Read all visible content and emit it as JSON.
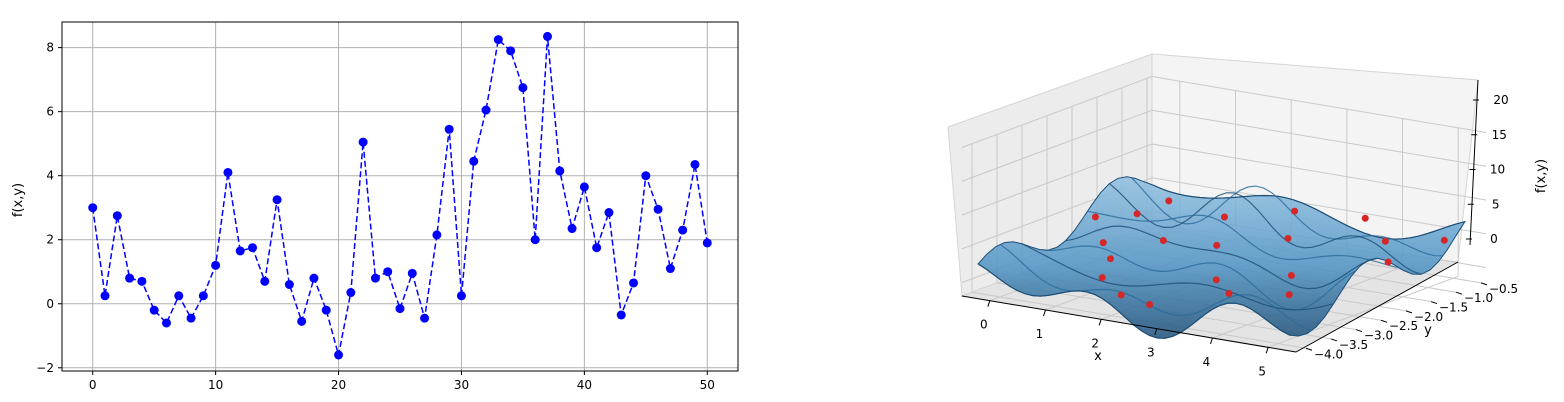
{
  "chart_data": [
    {
      "type": "line",
      "title": "",
      "xlabel": "",
      "ylabel": "f(x,y)",
      "xlim": [
        -2.5,
        52.5
      ],
      "ylim": [
        -2.1,
        8.8
      ],
      "xticks": [
        "0",
        "10",
        "20",
        "30",
        "40",
        "50"
      ],
      "yticks": [
        "−2",
        "0",
        "2",
        "4",
        "6",
        "8"
      ],
      "grid": true,
      "line_style": "dashed",
      "marker": "circle",
      "color": "#0000ff",
      "x": [
        0,
        1,
        2,
        3,
        4,
        5,
        6,
        7,
        8,
        9,
        10,
        11,
        12,
        13,
        14,
        15,
        16,
        17,
        18,
        19,
        20,
        21,
        22,
        23,
        24,
        25,
        26,
        27,
        28,
        29,
        30,
        31,
        32,
        33,
        34,
        35,
        36,
        37,
        38,
        39,
        40,
        41,
        42,
        43,
        44,
        45,
        46,
        47,
        48,
        49,
        50
      ],
      "y": [
        3.0,
        0.25,
        2.75,
        0.8,
        0.7,
        -0.2,
        -0.6,
        0.25,
        -0.45,
        0.25,
        1.2,
        4.1,
        1.65,
        1.75,
        0.7,
        3.25,
        0.6,
        -0.55,
        0.8,
        -0.2,
        -1.6,
        0.35,
        5.05,
        0.8,
        1.0,
        -0.15,
        0.95,
        -0.45,
        2.15,
        5.45,
        0.25,
        4.45,
        6.05,
        8.25,
        7.9,
        6.75,
        2.0,
        8.35,
        4.15,
        2.35,
        3.65,
        1.75,
        2.85,
        -0.35,
        0.65,
        4.0,
        2.95,
        1.1,
        2.3,
        4.35,
        1.9
      ]
    },
    {
      "type": "surface3d",
      "title": "",
      "xlabel": "x",
      "ylabel": "y",
      "zlabel": "f(x,y)",
      "xticks": [
        "0",
        "1",
        "2",
        "3",
        "4",
        "5"
      ],
      "yticks": [
        "−4.0",
        "−3.5",
        "−3.0",
        "−2.5",
        "−2.0",
        "−1.5",
        "−1.0",
        "−0.5"
      ],
      "zticks": [
        "0",
        "5",
        "10",
        "15",
        "20"
      ],
      "xlim": [
        -0.5,
        5.5
      ],
      "ylim": [
        -4.2,
        -0.4
      ],
      "zlim": [
        -2,
        20
      ],
      "surface_color": "#5b9fd0",
      "marker_color": "#d62728",
      "scatter": [
        {
          "x": 0.1,
          "y": -2.2,
          "z": 5.0
        },
        {
          "x": 0.4,
          "y": -1.7,
          "z": 4.5
        },
        {
          "x": 0.7,
          "y": -1.4,
          "z": 6.0
        },
        {
          "x": 0.6,
          "y": -2.6,
          "z": 3.0
        },
        {
          "x": 1.0,
          "y": -2.9,
          "z": 2.0
        },
        {
          "x": 1.3,
          "y": -3.4,
          "z": 1.0
        },
        {
          "x": 1.5,
          "y": -2.4,
          "z": 4.0
        },
        {
          "x": 1.7,
          "y": -1.4,
          "z": 5.0
        },
        {
          "x": 2.0,
          "y": -3.8,
          "z": 0.5
        },
        {
          "x": 2.1,
          "y": -2.0,
          "z": 3.0
        },
        {
          "x": 2.6,
          "y": -3.9,
          "z": 0.2
        },
        {
          "x": 2.6,
          "y": -1.0,
          "z": 6.0
        },
        {
          "x": 2.9,
          "y": -2.9,
          "z": 1.5
        },
        {
          "x": 3.2,
          "y": -1.8,
          "z": 5.0
        },
        {
          "x": 3.4,
          "y": -3.2,
          "z": 1.0
        },
        {
          "x": 3.6,
          "y": -0.7,
          "z": 5.5
        },
        {
          "x": 3.8,
          "y": -2.4,
          "z": 2.0
        },
        {
          "x": 4.3,
          "y": -3.0,
          "z": 1.5
        },
        {
          "x": 4.5,
          "y": -1.3,
          "z": 5.0
        },
        {
          "x": 5.0,
          "y": -1.8,
          "z": 4.0
        },
        {
          "x": 5.2,
          "y": -0.9,
          "z": 5.0
        }
      ]
    }
  ]
}
